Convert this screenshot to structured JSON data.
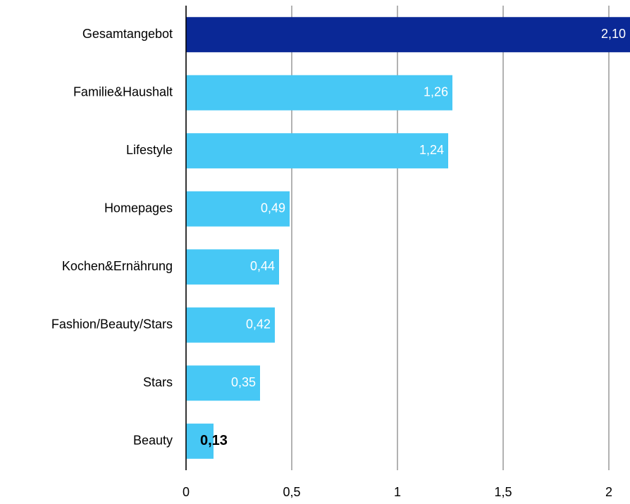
{
  "chart_data": {
    "type": "barh",
    "categories": [
      "Gesamtangebot",
      "Familie&Haushalt",
      "Lifestyle",
      "Homepages",
      "Kochen&Ernährung",
      "Fashion/Beauty/Stars",
      "Stars",
      "Beauty"
    ],
    "values": [
      2.1,
      1.26,
      1.24,
      0.49,
      0.44,
      0.42,
      0.35,
      0.13
    ],
    "value_labels": [
      "2,10",
      "1,26",
      "1,24",
      "0,49",
      "0,44",
      "0,42",
      "0,35",
      "0,13"
    ],
    "colors": [
      "#0a2896",
      "#47c8f5",
      "#47c8f5",
      "#47c8f5",
      "#47c8f5",
      "#47c8f5",
      "#47c8f5",
      "#47c8f5"
    ],
    "xlim": [
      0,
      2.1
    ],
    "xticks": [
      0,
      {
        "value": 0.5,
        "label": "0,5"
      },
      1,
      {
        "value": 1.5,
        "label": "1,5"
      },
      2
    ],
    "grid": true
  }
}
